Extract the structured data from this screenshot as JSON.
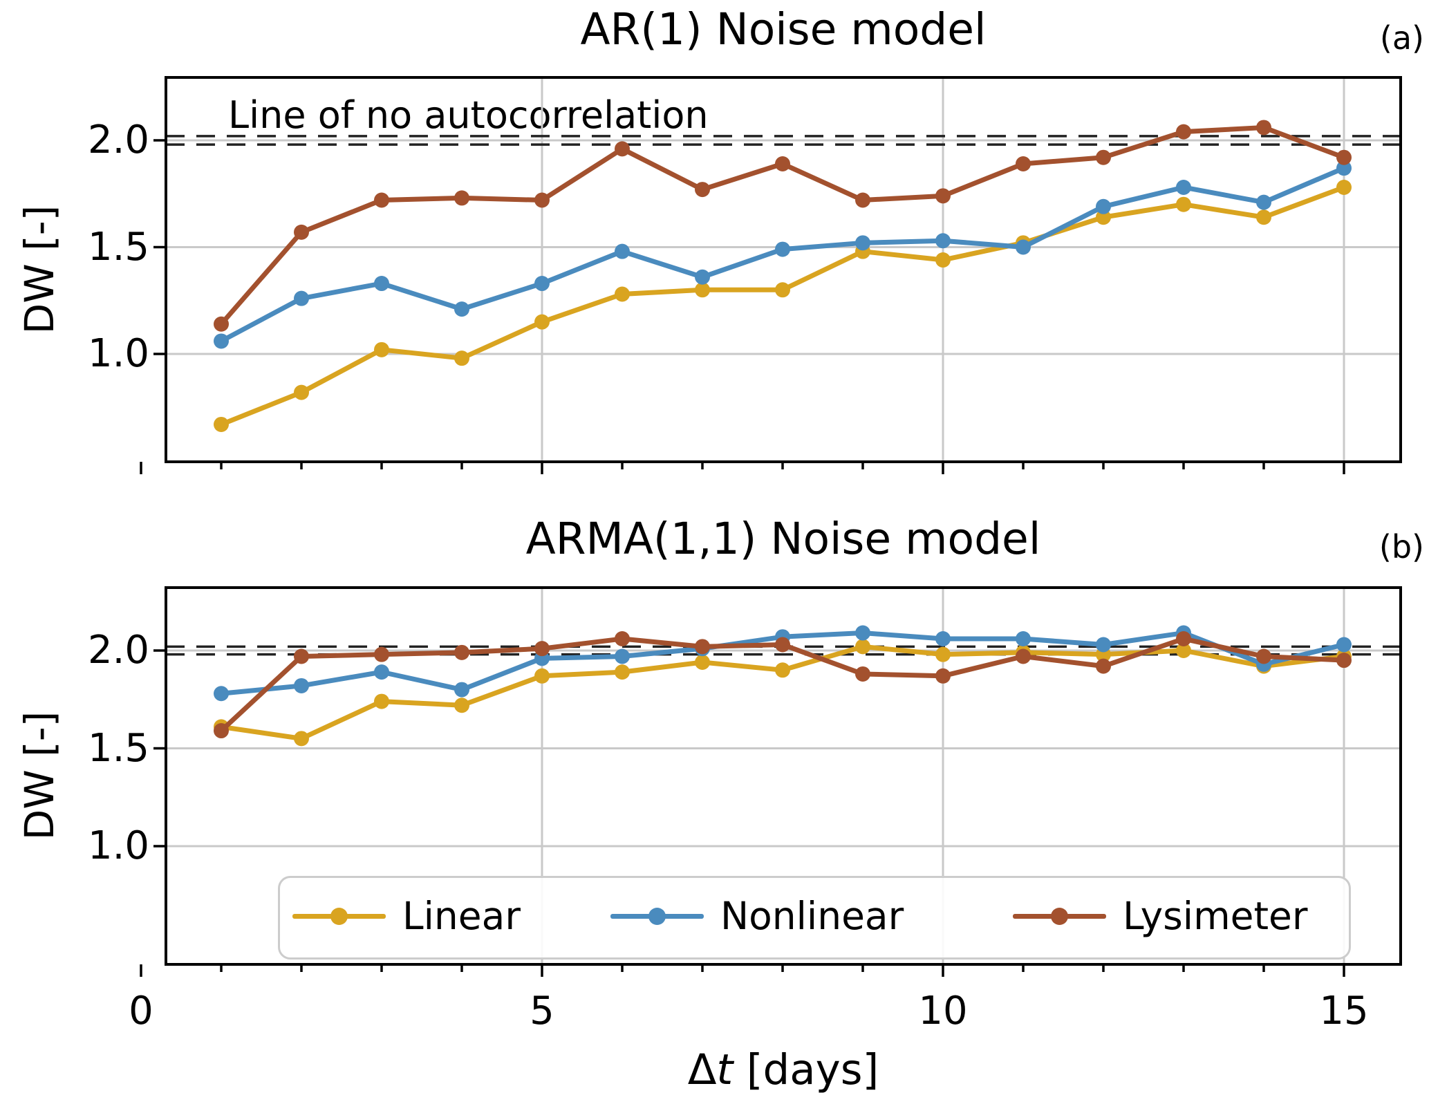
{
  "figure": {
    "panel_a": {
      "title": "AR(1) Noise model",
      "letter": "(a)",
      "ylabel": "DW [-]",
      "annotation": "Line of no autocorrelation"
    },
    "panel_b": {
      "title": "ARMA(1,1) Noise model",
      "letter": "(b)",
      "ylabel": "DW [-]"
    },
    "xlabel": {
      "delta": "Δ",
      "variable": "t",
      "unit": " [days]"
    }
  },
  "legend": {
    "position": "bottom of lower panel, horizontal, 3 entries",
    "entries": [
      {
        "label": "Linear",
        "color": "#D9A420"
      },
      {
        "label": "Nonlinear",
        "color": "#4A8BBE"
      },
      {
        "label": "Lysimeter",
        "color": "#A3512E"
      }
    ]
  },
  "style_colors": {
    "grid": "#c9c9c9",
    "dashed_reference": "#222222",
    "spine": "#000000"
  },
  "chart_data": [
    {
      "type": "line",
      "panel": "a",
      "title": "AR(1) Noise model",
      "xlabel": "Δt [days]",
      "ylabel": "DW [-]",
      "x": [
        1,
        2,
        3,
        4,
        5,
        6,
        7,
        8,
        9,
        10,
        11,
        12,
        13,
        14,
        15
      ],
      "series": [
        {
          "name": "Linear",
          "color": "#D9A420",
          "values": [
            0.67,
            0.82,
            1.02,
            0.98,
            1.15,
            1.28,
            1.3,
            1.3,
            1.48,
            1.44,
            1.52,
            1.64,
            1.7,
            1.64,
            1.78
          ]
        },
        {
          "name": "Nonlinear",
          "color": "#4A8BBE",
          "values": [
            1.06,
            1.26,
            1.33,
            1.21,
            1.33,
            1.48,
            1.36,
            1.49,
            1.52,
            1.53,
            1.5,
            1.69,
            1.78,
            1.71,
            1.87
          ]
        },
        {
          "name": "Lysimeter",
          "color": "#A3512E",
          "values": [
            1.14,
            1.57,
            1.72,
            1.73,
            1.72,
            1.96,
            1.77,
            1.89,
            1.72,
            1.74,
            1.89,
            1.92,
            2.04,
            2.06,
            1.92
          ]
        }
      ],
      "reference_line": 2.0,
      "dashed_band": [
        2.02,
        1.98
      ],
      "annotation": "Line of no autocorrelation",
      "xlim": [
        0.3,
        15.7
      ],
      "ylim": [
        0.5,
        2.3
      ],
      "x_gridline_days": [
        5,
        10,
        15
      ],
      "y_ticks": [
        2.0,
        1.5,
        1.0
      ],
      "y_tick_labels": [
        "2.0",
        "1.5",
        "1.0"
      ],
      "x_tick_values": [],
      "x_tick_labels": [],
      "grid": true
    },
    {
      "type": "line",
      "panel": "b",
      "title": "ARMA(1,1) Noise model",
      "xlabel": "Δt [days]",
      "ylabel": "DW [-]",
      "x": [
        1,
        2,
        3,
        4,
        5,
        6,
        7,
        8,
        9,
        10,
        11,
        12,
        13,
        14,
        15
      ],
      "series": [
        {
          "name": "Linear",
          "color": "#D9A420",
          "values": [
            1.61,
            1.55,
            1.74,
            1.72,
            1.87,
            1.89,
            1.94,
            1.9,
            2.02,
            1.98,
            1.99,
            1.98,
            2.0,
            1.92,
            1.97
          ]
        },
        {
          "name": "Nonlinear",
          "color": "#4A8BBE",
          "values": [
            1.78,
            1.82,
            1.89,
            1.8,
            1.96,
            1.97,
            2.01,
            2.07,
            2.09,
            2.06,
            2.06,
            2.03,
            2.09,
            1.93,
            2.03
          ]
        },
        {
          "name": "Lysimeter",
          "color": "#A3512E",
          "values": [
            1.59,
            1.97,
            1.98,
            1.99,
            2.01,
            2.06,
            2.02,
            2.03,
            1.88,
            1.87,
            1.97,
            1.92,
            2.06,
            1.97,
            1.95
          ]
        }
      ],
      "reference_line": 2.0,
      "dashed_band": [
        2.02,
        1.98
      ],
      "xlim": [
        0.3,
        15.7
      ],
      "ylim": [
        0.4,
        2.32
      ],
      "x_gridline_days": [
        5,
        10,
        15
      ],
      "y_ticks": [
        2.0,
        1.5,
        1.0
      ],
      "y_tick_labels": [
        "2.0",
        "1.5",
        "1.0"
      ],
      "x_tick_values": [
        0,
        5,
        10,
        15
      ],
      "x_tick_labels": [
        "0",
        "5",
        "10",
        "15"
      ],
      "grid": true
    }
  ]
}
